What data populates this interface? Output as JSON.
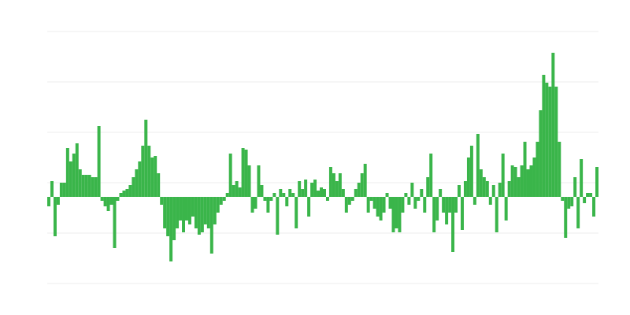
{
  "chart_data": {
    "type": "bar",
    "color": "#3ab54a",
    "grid": true,
    "ylim": [
      -110,
      210
    ],
    "yticks": [
      -110,
      -46,
      18,
      82,
      146,
      210
    ],
    "values": [
      -12,
      20,
      -50,
      -10,
      18,
      18,
      62,
      45,
      55,
      68,
      35,
      28,
      28,
      28,
      25,
      25,
      90,
      -5,
      -12,
      -18,
      -10,
      -65,
      -5,
      5,
      8,
      10,
      15,
      25,
      35,
      45,
      65,
      98,
      65,
      50,
      52,
      30,
      -10,
      -40,
      -50,
      -82,
      -55,
      -40,
      -30,
      -45,
      -30,
      -35,
      -25,
      -40,
      -48,
      -45,
      -35,
      -40,
      -72,
      -35,
      -20,
      -10,
      -5,
      5,
      55,
      15,
      20,
      12,
      62,
      60,
      40,
      -20,
      -15,
      40,
      15,
      -5,
      -20,
      -5,
      5,
      -48,
      10,
      5,
      -12,
      10,
      5,
      -40,
      20,
      10,
      22,
      -25,
      18,
      22,
      8,
      12,
      10,
      -5,
      38,
      30,
      20,
      30,
      10,
      -20,
      -10,
      -5,
      10,
      18,
      30,
      42,
      -20,
      -5,
      -15,
      -25,
      -30,
      -20,
      5,
      -15,
      -45,
      -40,
      -45,
      -20,
      5,
      -10,
      18,
      -15,
      -5,
      10,
      -20,
      25,
      55,
      -45,
      -30,
      10,
      -20,
      -35,
      -20,
      -70,
      -20,
      15,
      -42,
      20,
      50,
      65,
      -10,
      80,
      35,
      25,
      20,
      -10,
      15,
      -45,
      18,
      55,
      -30,
      20,
      40,
      38,
      25,
      40,
      70,
      35,
      40,
      50,
      70,
      110,
      155,
      145,
      140,
      183,
      140,
      70,
      -5,
      -52,
      -15,
      -12,
      25,
      -40,
      48,
      -8,
      5,
      5,
      -25,
      38
    ]
  }
}
